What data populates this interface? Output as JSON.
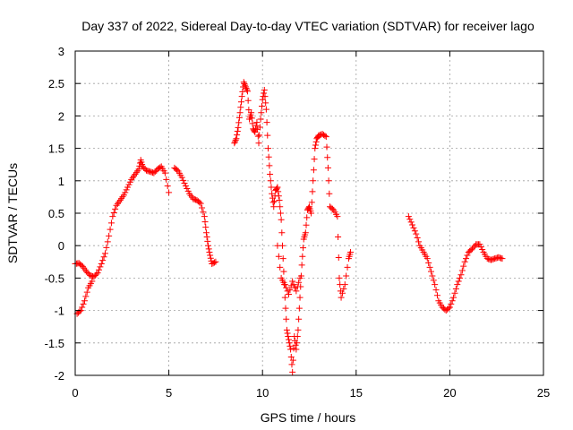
{
  "chart_data": {
    "type": "scatter",
    "title": "Day 337 of 2022, Sidereal Day-to-day VTEC variation (SDTVAR) for receiver lago",
    "xlabel": "GPS time / hours",
    "ylabel": "SDTVAR / TECUs",
    "xlim": [
      0,
      25
    ],
    "ylim": [
      -2,
      3
    ],
    "xticks": [
      0,
      5,
      10,
      15,
      20,
      25
    ],
    "yticks": [
      -2,
      -1.5,
      -1,
      -0.5,
      0,
      0.5,
      1,
      1.5,
      2,
      2.5,
      3
    ],
    "grid": true,
    "marker": "+",
    "color": "#ff0000",
    "series": [
      {
        "points": [
          [
            0.0,
            -0.28
          ],
          [
            0.2,
            -0.27
          ],
          [
            0.4,
            -0.32
          ],
          [
            0.6,
            -0.4
          ],
          [
            0.8,
            -0.46
          ],
          [
            1.0,
            -0.48
          ],
          [
            1.2,
            -0.42
          ],
          [
            1.4,
            -0.28
          ],
          [
            1.6,
            -0.12
          ],
          [
            1.8,
            0.15
          ],
          [
            2.0,
            0.45
          ],
          [
            2.2,
            0.62
          ],
          [
            2.4,
            0.7
          ],
          [
            2.6,
            0.78
          ],
          [
            2.8,
            0.9
          ],
          [
            3.0,
            1.02
          ],
          [
            3.2,
            1.1
          ],
          [
            3.4,
            1.18
          ],
          [
            3.5,
            1.32
          ],
          [
            3.6,
            1.22
          ],
          [
            3.8,
            1.16
          ],
          [
            4.0,
            1.14
          ],
          [
            4.2,
            1.12
          ],
          [
            4.4,
            1.18
          ],
          [
            4.6,
            1.22
          ],
          [
            4.8,
            1.12
          ],
          [
            5.0,
            0.82
          ],
          [
            0.1,
            -1.05
          ],
          [
            0.3,
            -1.0
          ],
          [
            0.5,
            -0.85
          ],
          [
            0.7,
            -0.65
          ],
          [
            0.9,
            -0.55
          ],
          [
            5.3,
            1.2
          ],
          [
            5.5,
            1.15
          ],
          [
            5.7,
            1.05
          ],
          [
            5.9,
            0.92
          ],
          [
            6.1,
            0.8
          ],
          [
            6.3,
            0.72
          ],
          [
            6.5,
            0.7
          ],
          [
            6.7,
            0.65
          ],
          [
            6.9,
            0.45
          ],
          [
            7.0,
            0.2
          ],
          [
            7.1,
            0.0
          ],
          [
            7.2,
            -0.15
          ],
          [
            7.3,
            -0.28
          ],
          [
            7.5,
            -0.25
          ]
        ]
      },
      {
        "points": [
          [
            8.5,
            1.58
          ],
          [
            8.6,
            1.65
          ],
          [
            8.7,
            1.82
          ],
          [
            8.8,
            2.05
          ],
          [
            8.9,
            2.3
          ],
          [
            9.0,
            2.52
          ],
          [
            9.1,
            2.45
          ],
          [
            9.2,
            2.38
          ],
          [
            9.3,
            1.95
          ],
          [
            9.4,
            2.05
          ],
          [
            9.5,
            1.8
          ],
          [
            9.6,
            1.75
          ],
          [
            9.7,
            1.9
          ],
          [
            9.8,
            1.58
          ],
          [
            9.9,
            1.95
          ],
          [
            10.0,
            2.25
          ],
          [
            10.1,
            2.4
          ],
          [
            10.2,
            2.1
          ],
          [
            10.3,
            1.5
          ],
          [
            10.4,
            1.1
          ],
          [
            10.5,
            0.8
          ],
          [
            10.6,
            0.6
          ],
          [
            10.7,
            0.85
          ],
          [
            10.8,
            0.9
          ],
          [
            10.9,
            0.7
          ],
          [
            11.0,
            0.4
          ],
          [
            11.1,
            -0.2
          ],
          [
            11.2,
            -0.8
          ],
          [
            11.3,
            -1.3
          ],
          [
            11.4,
            -1.45
          ],
          [
            11.5,
            -1.6
          ],
          [
            11.6,
            -1.95
          ],
          [
            11.7,
            -1.4
          ],
          [
            11.8,
            -1.6
          ],
          [
            11.9,
            -1.3
          ],
          [
            12.0,
            -0.8
          ],
          [
            12.1,
            -0.3
          ],
          [
            12.2,
            0.1
          ],
          [
            12.3,
            0.2
          ],
          [
            12.4,
            0.55
          ],
          [
            12.5,
            0.6
          ],
          [
            12.6,
            0.5
          ],
          [
            12.7,
            1.0
          ],
          [
            12.8,
            1.5
          ],
          [
            12.9,
            1.65
          ],
          [
            13.0,
            1.7
          ],
          [
            13.2,
            1.72
          ],
          [
            13.4,
            1.68
          ],
          [
            13.5,
            1.2
          ],
          [
            13.6,
            0.6
          ],
          [
            13.8,
            0.55
          ],
          [
            14.0,
            0.45
          ],
          [
            14.1,
            -0.5
          ],
          [
            14.2,
            -0.8
          ],
          [
            14.4,
            -0.6
          ],
          [
            14.6,
            -0.2
          ],
          [
            14.7,
            -0.1
          ],
          [
            10.8,
            0.0
          ],
          [
            11.0,
            -0.5
          ],
          [
            11.2,
            -0.6
          ],
          [
            11.4,
            -0.75
          ],
          [
            11.6,
            -0.55
          ],
          [
            11.8,
            -0.7
          ],
          [
            12.0,
            -0.5
          ]
        ]
      },
      {
        "points": [
          [
            17.8,
            0.45
          ],
          [
            18.0,
            0.32
          ],
          [
            18.2,
            0.18
          ],
          [
            18.4,
            0.0
          ],
          [
            18.6,
            -0.1
          ],
          [
            18.8,
            -0.2
          ],
          [
            19.0,
            -0.4
          ],
          [
            19.2,
            -0.6
          ],
          [
            19.4,
            -0.85
          ],
          [
            19.6,
            -0.95
          ],
          [
            19.8,
            -1.0
          ],
          [
            20.0,
            -0.95
          ],
          [
            20.2,
            -0.8
          ],
          [
            20.4,
            -0.6
          ],
          [
            20.6,
            -0.45
          ],
          [
            20.8,
            -0.25
          ],
          [
            21.0,
            -0.1
          ],
          [
            21.2,
            -0.05
          ],
          [
            21.4,
            0.02
          ],
          [
            21.6,
            0.02
          ],
          [
            21.8,
            -0.1
          ],
          [
            22.0,
            -0.2
          ],
          [
            22.2,
            -0.22
          ],
          [
            22.4,
            -0.2
          ],
          [
            22.6,
            -0.18
          ],
          [
            22.8,
            -0.2
          ]
        ]
      }
    ]
  }
}
